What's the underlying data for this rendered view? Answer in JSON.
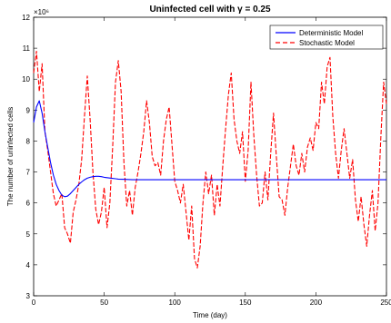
{
  "chart_data": {
    "type": "line",
    "title": "Uninfected cell with γ = 0.25",
    "xlabel": "Time (day)",
    "ylabel": "The number of uninfected cells",
    "y_multiplier_label": "×10⁶",
    "xlim": [
      0,
      250
    ],
    "ylim": [
      3,
      12
    ],
    "xticks": [
      0,
      50,
      100,
      150,
      200,
      250
    ],
    "yticks": [
      3,
      4,
      5,
      6,
      7,
      8,
      9,
      10,
      11,
      12
    ],
    "grid": false,
    "legend_position": "top-right",
    "series": [
      {
        "name": "Deterministic Model",
        "color": "#0000ff",
        "style": "solid",
        "x": [
          0,
          2,
          4,
          6,
          8,
          10,
          12,
          14,
          16,
          18,
          20,
          22,
          24,
          26,
          28,
          30,
          32,
          34,
          36,
          38,
          40,
          42,
          44,
          46,
          48,
          50,
          55,
          60,
          65,
          70,
          80,
          100,
          150,
          200,
          250
        ],
        "y": [
          8.6,
          9.1,
          9.3,
          8.9,
          8.3,
          7.8,
          7.3,
          6.9,
          6.6,
          6.4,
          6.25,
          6.2,
          6.22,
          6.3,
          6.4,
          6.5,
          6.6,
          6.68,
          6.75,
          6.8,
          6.83,
          6.85,
          6.86,
          6.86,
          6.85,
          6.83,
          6.8,
          6.77,
          6.76,
          6.75,
          6.75,
          6.75,
          6.75,
          6.75,
          6.75
        ]
      },
      {
        "name": "Stochastic Model",
        "color": "#ff0000",
        "style": "dashed",
        "x": [
          0,
          2,
          4,
          6,
          8,
          10,
          12,
          14,
          16,
          18,
          20,
          22,
          24,
          26,
          28,
          30,
          32,
          34,
          36,
          38,
          40,
          42,
          44,
          46,
          48,
          50,
          52,
          54,
          56,
          58,
          60,
          62,
          64,
          66,
          68,
          70,
          72,
          74,
          76,
          78,
          80,
          82,
          84,
          86,
          88,
          90,
          92,
          94,
          96,
          98,
          100,
          102,
          104,
          106,
          108,
          110,
          112,
          114,
          116,
          118,
          120,
          122,
          124,
          126,
          128,
          130,
          132,
          134,
          136,
          138,
          140,
          142,
          144,
          146,
          148,
          150,
          152,
          154,
          156,
          158,
          160,
          162,
          164,
          166,
          168,
          170,
          172,
          174,
          176,
          178,
          180,
          182,
          184,
          186,
          188,
          190,
          192,
          194,
          196,
          198,
          200,
          202,
          204,
          206,
          208,
          210,
          212,
          214,
          216,
          218,
          220,
          222,
          224,
          226,
          228,
          230,
          232,
          234,
          236,
          238,
          240,
          242,
          244,
          246,
          248,
          250
        ],
        "y": [
          10.2,
          10.9,
          9.6,
          10.5,
          8.3,
          7.7,
          7.0,
          6.3,
          5.9,
          6.1,
          6.3,
          5.2,
          5.0,
          4.7,
          5.7,
          6.1,
          6.6,
          7.4,
          8.8,
          10.1,
          8.7,
          7.0,
          5.8,
          5.3,
          5.7,
          6.5,
          5.2,
          6.0,
          7.8,
          9.9,
          10.6,
          9.6,
          7.3,
          5.9,
          6.4,
          5.6,
          6.5,
          7.0,
          7.6,
          8.3,
          9.3,
          8.6,
          7.5,
          7.2,
          7.3,
          6.9,
          8.0,
          8.7,
          9.1,
          7.9,
          6.7,
          6.4,
          6.0,
          6.6,
          5.7,
          4.8,
          5.9,
          4.2,
          3.9,
          4.6,
          6.0,
          7.0,
          6.3,
          6.9,
          5.6,
          6.6,
          5.9,
          7.2,
          8.4,
          9.5,
          10.2,
          8.7,
          8.0,
          7.6,
          8.3,
          6.7,
          7.7,
          9.9,
          8.2,
          6.9,
          5.9,
          6.0,
          7.0,
          6.1,
          7.6,
          8.9,
          7.5,
          6.2,
          6.1,
          5.6,
          6.5,
          7.2,
          7.9,
          7.2,
          6.9,
          7.6,
          7.0,
          7.8,
          8.1,
          7.7,
          8.6,
          8.4,
          9.9,
          9.2,
          10.4,
          10.7,
          8.8,
          7.6,
          6.8,
          7.7,
          8.4,
          7.6,
          6.8,
          7.4,
          6.1,
          5.4,
          6.2,
          5.3,
          4.6,
          5.6,
          6.4,
          5.1,
          6.0,
          8.1,
          9.9,
          9.2
        ]
      }
    ]
  }
}
